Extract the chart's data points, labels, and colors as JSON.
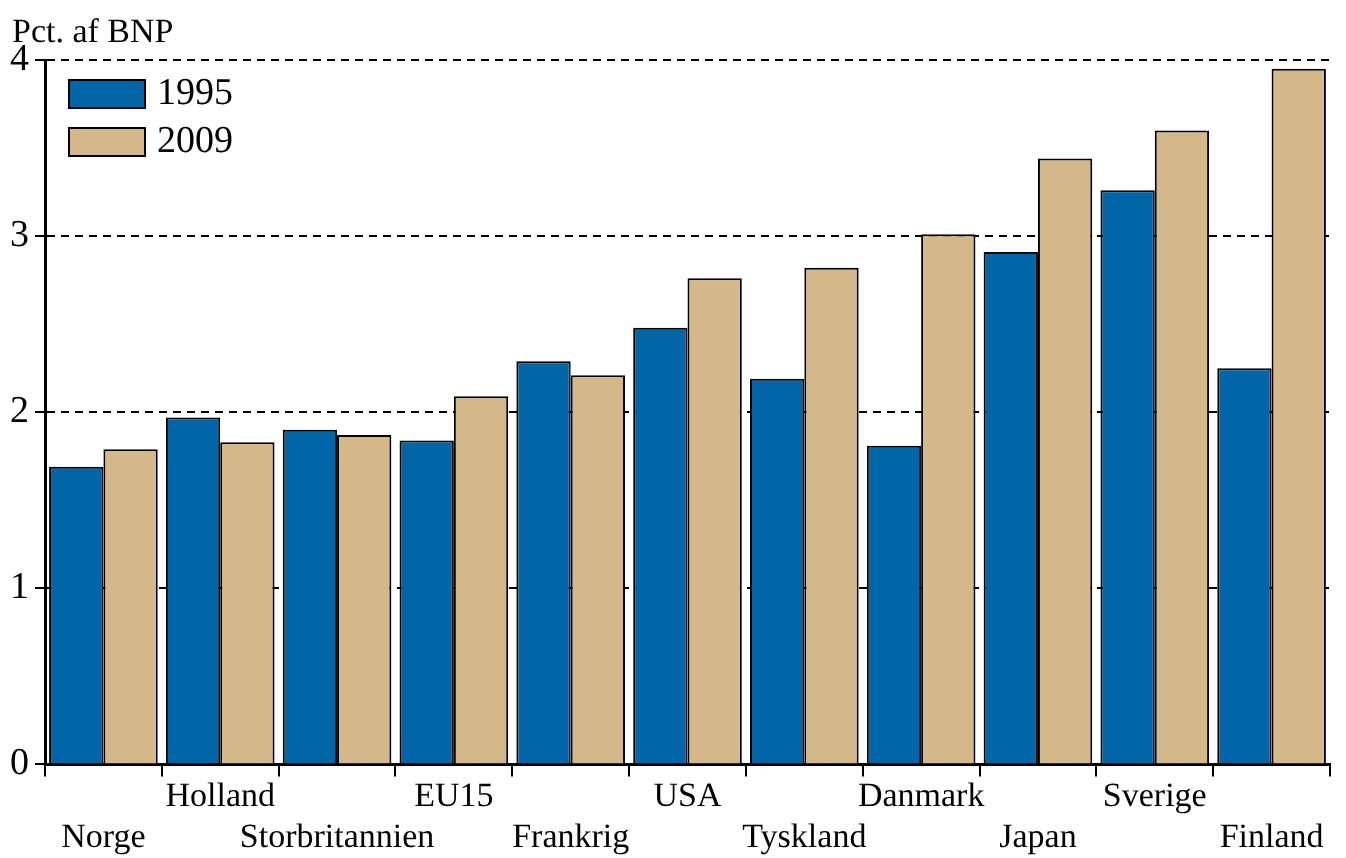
{
  "chart_data": {
    "type": "bar",
    "ylabel": "Pct. af BNP",
    "categories": [
      "Norge",
      "Holland",
      "Storbritannien",
      "EU15",
      "Frankrig",
      "USA",
      "Tyskland",
      "Danmark",
      "Japan",
      "Sverige",
      "Finland"
    ],
    "series": [
      {
        "name": "1995",
        "color": "#0066a8",
        "values": [
          1.69,
          1.97,
          1.9,
          1.84,
          2.29,
          2.48,
          2.19,
          1.81,
          2.91,
          3.26,
          2.25
        ]
      },
      {
        "name": "2009",
        "color": "#d4b88a",
        "values": [
          1.79,
          1.83,
          1.87,
          2.09,
          2.21,
          2.76,
          2.82,
          3.01,
          3.44,
          3.6,
          3.95
        ]
      }
    ],
    "ylim": [
      0,
      4
    ],
    "yticks": [
      0,
      1,
      2,
      3,
      4
    ],
    "grid": "y",
    "legend": "top left"
  }
}
